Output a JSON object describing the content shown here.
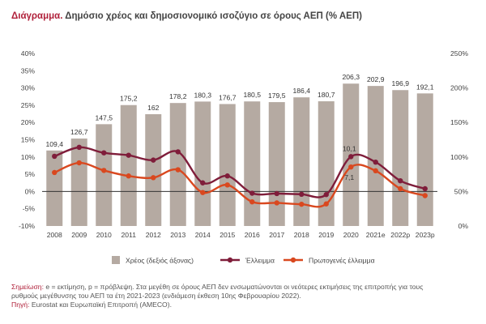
{
  "header": {
    "prefix": "Διάγραμμα.",
    "title": "Δημόσιο χρέος και δημοσιονομικό ισοζύγιο σε όρους ΑΕΠ (% ΑΕΠ)"
  },
  "notes": {
    "label1": "Σημείωση:",
    "text1a": "e = εκτίμηση, p = πρόβλεψη. Στα μεγέθη σε όρους ΑΕΠ δεν ενσωματώνονται οι νεότερες εκτιμήσεις της επιτροπής για τους",
    "text1b": "ρυθμούς μεγέθυνσης του ΑΕΠ τα έτη 2021-2023 (ενδιάμεση έκθεση 10ης Φεβρουαρίου 2022).",
    "label2": "Πηγή:",
    "text2": "Eurostat και Ευρωπαϊκή Επιτροπή (AMECO)."
  },
  "chart_data": {
    "type": "bar",
    "categories": [
      "2008",
      "2009",
      "2010",
      "2011",
      "2012",
      "2013",
      "2014",
      "2015",
      "2016",
      "2017",
      "2018",
      "2019",
      "2020",
      "2021e",
      "2022p",
      "2023p"
    ],
    "left_axis": {
      "min": -10,
      "max": 40,
      "step": 5,
      "suffix": "%",
      "ticks": [
        "-10%",
        "-5%",
        "0%",
        "5%",
        "10%",
        "15%",
        "20%",
        "25%",
        "30%",
        "35%",
        "40%"
      ]
    },
    "right_axis": {
      "min": 0,
      "max": 250,
      "step": 50,
      "suffix": "%",
      "ticks": [
        "0%",
        "50%",
        "100%",
        "150%",
        "200%",
        "250%"
      ]
    },
    "bar_series": {
      "name": "Χρέος (δεξιός άξονας)",
      "axis": "right",
      "color": "#b5aaa2",
      "values": [
        109.4,
        126.7,
        147.5,
        175.2,
        162,
        178.2,
        180.3,
        176.7,
        180.5,
        179.5,
        186.4,
        180.7,
        206.3,
        202.9,
        196.9,
        192.1
      ],
      "labels": [
        "109,4",
        "126,7",
        "147,5",
        "175,2",
        "162",
        "178,2",
        "180,3",
        "176,7",
        "180,5",
        "179,5",
        "186,4",
        "180,7",
        "206,3",
        "202,9",
        "196,9",
        "192,1"
      ]
    },
    "line_series": [
      {
        "name": "Έλλειμμα",
        "axis": "left",
        "color": "#7f1d3a",
        "values": [
          10.2,
          12.8,
          11.2,
          10.5,
          9.1,
          11.5,
          2.5,
          4.5,
          -0.5,
          -0.6,
          -0.8,
          -0.9,
          10.1,
          8.5,
          3.1,
          0.8
        ],
        "annotations": [
          {
            "index": 12,
            "text": "10,1"
          }
        ]
      },
      {
        "name": "Πρωτογενές έλλειμμα",
        "axis": "left",
        "color": "#d9481f",
        "values": [
          5.5,
          8.3,
          6.1,
          4.5,
          4.0,
          6.3,
          -0.3,
          1.9,
          -3.0,
          -3.3,
          -3.7,
          -3.6,
          7.1,
          6.0,
          0.8,
          -1.2
        ],
        "annotations": [
          {
            "index": 12,
            "text": "7,1"
          }
        ]
      }
    ],
    "legend": [
      "Χρέος (δεξιός άξονας)",
      "Έλλειμμα",
      "Πρωτογενές έλλειμμα"
    ],
    "grid": false
  }
}
